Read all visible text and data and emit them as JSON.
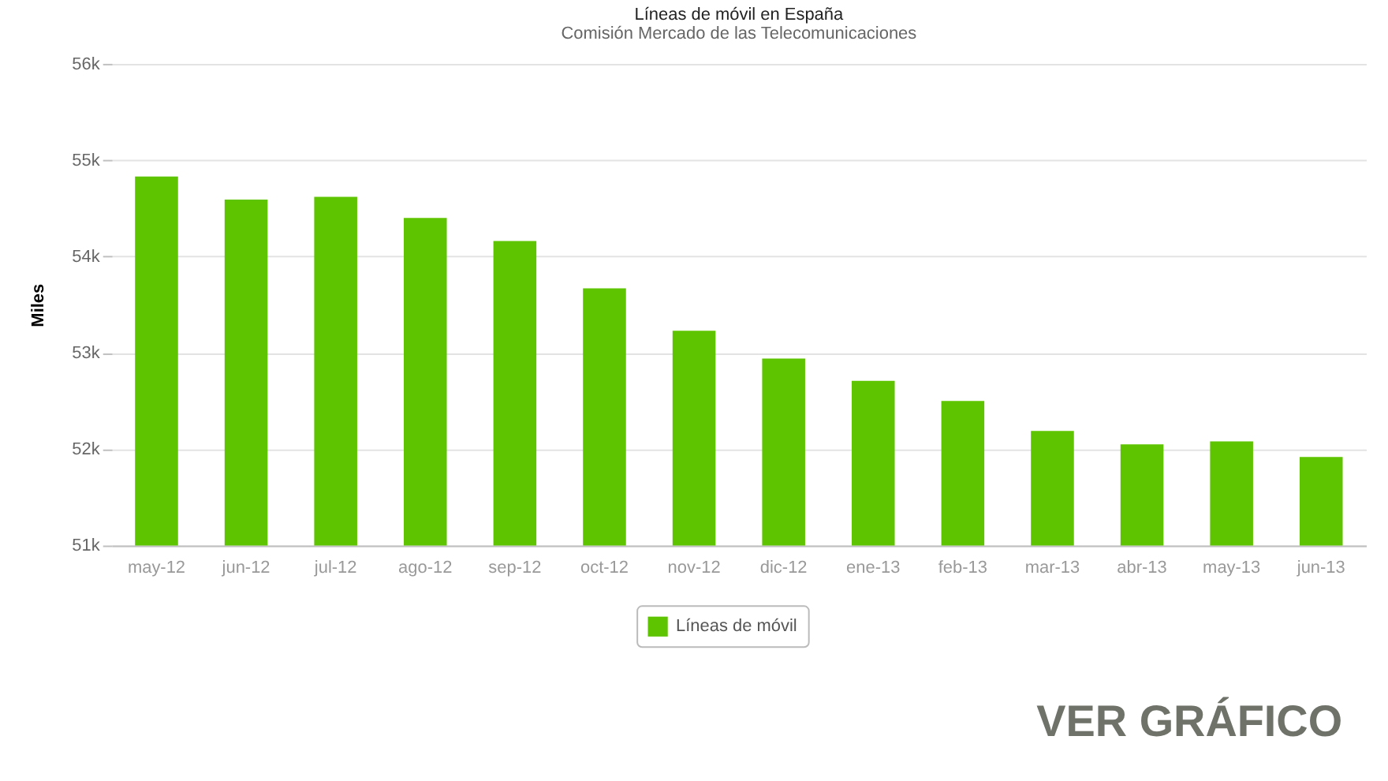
{
  "chart_data": {
    "type": "bar",
    "title": "Líneas de móvil en España",
    "subtitle": "Comisión Mercado de las Telecomunicaciones",
    "ylabel": "Miles",
    "categories": [
      "may-12",
      "jun-12",
      "jul-12",
      "ago-12",
      "sep-12",
      "oct-12",
      "nov-12",
      "dic-12",
      "ene-13",
      "feb-13",
      "mar-13",
      "abr-13",
      "may-13",
      "jun-13"
    ],
    "series": [
      {
        "name": "Líneas de móvil",
        "color": "#5fc400",
        "values": [
          54830,
          54590,
          54620,
          54400,
          54160,
          53670,
          53230,
          52940,
          52710,
          52500,
          52190,
          52050,
          52080,
          51920
        ]
      }
    ],
    "ylim": [
      51000,
      56000
    ],
    "yticks": [
      {
        "value": 51000,
        "label": "51k"
      },
      {
        "value": 52000,
        "label": "52k"
      },
      {
        "value": 53000,
        "label": "53k"
      },
      {
        "value": 54000,
        "label": "54k"
      },
      {
        "value": 55000,
        "label": "55k"
      },
      {
        "value": 56000,
        "label": "56k"
      }
    ],
    "grid": "y",
    "legend": "bottom",
    "annotations": [
      "VER GRÁFICO"
    ]
  }
}
